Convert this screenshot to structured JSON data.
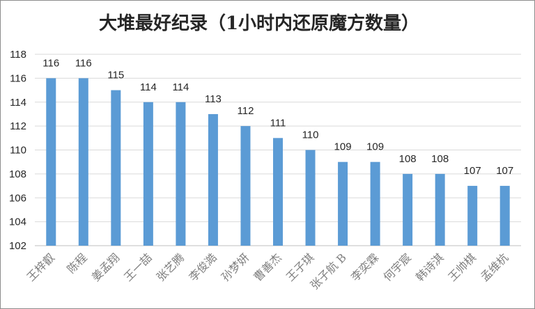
{
  "chart_data": {
    "type": "bar",
    "title": "大堆最好纪录（1小时内还原魔方数量）",
    "categories": [
      "王梓叡",
      "陈程",
      "姜孟翔",
      "王一喆",
      "张艺腾",
      "李俊澔",
      "孙梦妍",
      "曹善杰",
      "王子琪",
      "张子航 B",
      "李奕霖",
      "何宇宸",
      "韩诗淇",
      "王帅棋",
      "孟维杭"
    ],
    "values": [
      116,
      116,
      115,
      114,
      114,
      113,
      112,
      111,
      110,
      109,
      109,
      108,
      108,
      107,
      107
    ],
    "ylim": [
      102,
      118
    ],
    "yticks": [
      102,
      104,
      106,
      108,
      110,
      112,
      114,
      116,
      118
    ],
    "xlabel": "",
    "ylabel": "",
    "grid": true,
    "bar_color": "#5b9bd5"
  }
}
